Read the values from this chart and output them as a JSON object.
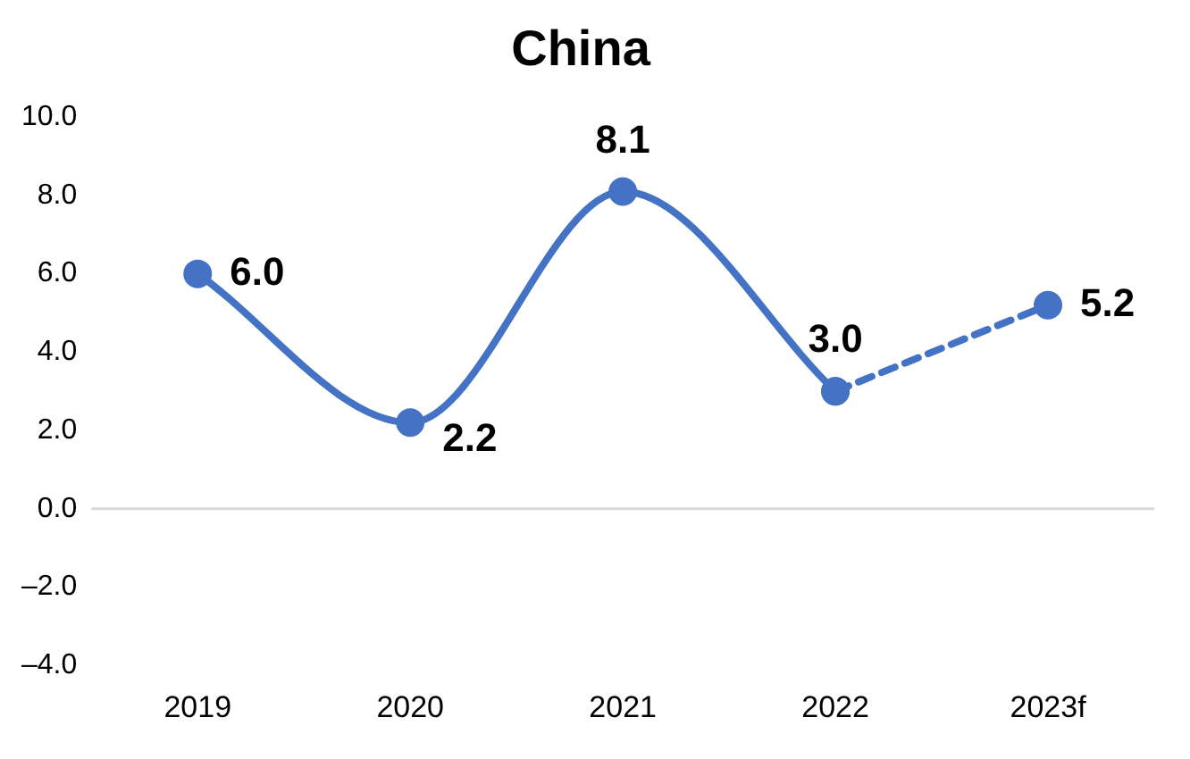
{
  "chart_data": {
    "type": "line",
    "title": "China",
    "categories": [
      "2019",
      "2020",
      "2021",
      "2022",
      "2023f"
    ],
    "series": [
      {
        "color": "#4472c4",
        "values": [
          6.0,
          2.2,
          8.1,
          3.0,
          null
        ],
        "value_labels": [
          "6.0",
          "2.2",
          "8.1",
          "3.0",
          null
        ],
        "line_style": "solid"
      },
      {
        "color": "#4472c4",
        "values": [
          null,
          null,
          null,
          3.0,
          5.2
        ],
        "value_labels": [
          null,
          null,
          null,
          null,
          "5.2"
        ],
        "line_style": "dashed"
      }
    ],
    "ylim": [
      -4,
      10
    ],
    "yticks": [
      {
        "value": -4,
        "label": "–4.0"
      },
      {
        "value": -2,
        "label": "–2.0"
      },
      {
        "value": 0,
        "label": "0.0"
      },
      {
        "value": 2,
        "label": "2.0"
      },
      {
        "value": 4,
        "label": "4.0"
      },
      {
        "value": 6,
        "label": "6.0"
      },
      {
        "value": 8,
        "label": "8.0"
      },
      {
        "value": 10,
        "label": "10.0"
      }
    ],
    "ref_lines": [
      {
        "axis": "y",
        "value": 0,
        "color": "#d9d9d9"
      }
    ],
    "grid": false,
    "legend": false,
    "marker": "circle"
  }
}
